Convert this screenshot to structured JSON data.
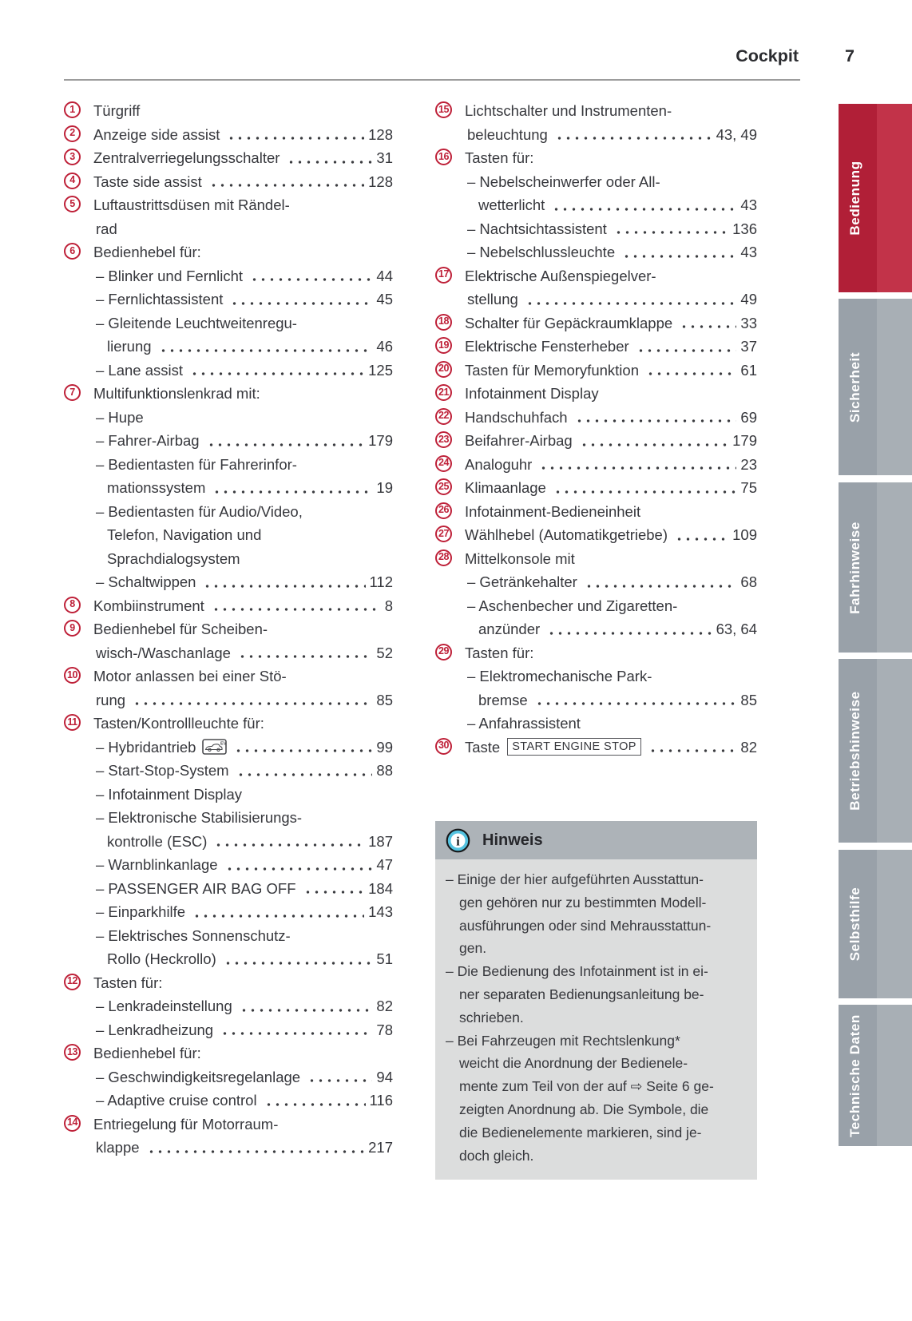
{
  "header": {
    "title": "Cockpit",
    "page_number": "7"
  },
  "toc": {
    "left": [
      {
        "n": "1",
        "lines": [
          "Türgriff"
        ]
      },
      {
        "n": "2",
        "lines": [
          "Anzeige side assist"
        ],
        "page": "128"
      },
      {
        "n": "3",
        "lines": [
          "Zentralverriegelungsschalter"
        ],
        "page": "31"
      },
      {
        "n": "4",
        "lines": [
          "Taste side assist"
        ],
        "page": "128"
      },
      {
        "n": "5",
        "lines": [
          "Luftaustrittsdüsen mit Rändel-",
          "rad"
        ]
      },
      {
        "n": "6",
        "lines": [
          "Bedienhebel für:"
        ]
      },
      {
        "s": true,
        "lines": [
          "– Blinker und Fernlicht"
        ],
        "page": "44"
      },
      {
        "s": true,
        "lines": [
          "– Fernlichtassistent"
        ],
        "page": "45"
      },
      {
        "s": true,
        "lines": [
          "– Gleitende Leuchtweitenregu-",
          "lierung"
        ],
        "page": "46"
      },
      {
        "s": true,
        "lines": [
          "– Lane assist"
        ],
        "page": "125"
      },
      {
        "n": "7",
        "lines": [
          "Multifunktionslenkrad mit:"
        ]
      },
      {
        "s": true,
        "lines": [
          "– Hupe"
        ]
      },
      {
        "s": true,
        "lines": [
          "– Fahrer-Airbag"
        ],
        "page": "179"
      },
      {
        "s": true,
        "lines": [
          "– Bedientasten für Fahrerinfor-",
          "mationssystem"
        ],
        "page": "19"
      },
      {
        "s": true,
        "lines": [
          "– Bedientasten für Audio/Video,",
          "Telefon, Navigation und",
          "Sprachdialogsystem"
        ]
      },
      {
        "s": true,
        "lines": [
          "– Schaltwippen"
        ],
        "page": "112"
      },
      {
        "n": "8",
        "lines": [
          "Kombiinstrument"
        ],
        "page": "8"
      },
      {
        "n": "9",
        "lines": [
          "Bedienhebel für Scheiben-",
          "wisch-/Waschanlage"
        ],
        "page": "52"
      },
      {
        "n": "10",
        "lines": [
          "Motor anlassen bei einer Stö-",
          "rung"
        ],
        "page": "85"
      },
      {
        "n": "11",
        "lines": [
          "Tasten/Kontrollleuchte für:"
        ]
      },
      {
        "s": true,
        "lines": [
          "– Hybridantrieb"
        ],
        "icon": "ev-car-icon",
        "page": "99"
      },
      {
        "s": true,
        "lines": [
          "– Start-Stop-System"
        ],
        "page": "88"
      },
      {
        "s": true,
        "lines": [
          "– Infotainment Display"
        ]
      },
      {
        "s": true,
        "lines": [
          "– Elektronische Stabilisierungs-",
          "kontrolle (ESC)"
        ],
        "page": "187"
      },
      {
        "s": true,
        "lines": [
          "– Warnblinkanlage"
        ],
        "page": "47"
      },
      {
        "s": true,
        "lines": [
          "– PASSENGER AIR BAG OFF"
        ],
        "page": "184"
      },
      {
        "s": true,
        "lines": [
          "– Einparkhilfe"
        ],
        "page": "143"
      },
      {
        "s": true,
        "lines": [
          "– Elektrisches Sonnenschutz-",
          "Rollo (Heckrollo)"
        ],
        "page": "51"
      },
      {
        "n": "12",
        "lines": [
          "Tasten für:"
        ]
      },
      {
        "s": true,
        "lines": [
          "– Lenkradeinstellung"
        ],
        "page": "82"
      },
      {
        "s": true,
        "lines": [
          "– Lenkradheizung"
        ],
        "page": "78"
      },
      {
        "n": "13",
        "lines": [
          "Bedienhebel für:"
        ]
      },
      {
        "s": true,
        "lines": [
          "– Geschwindigkeitsregelanlage"
        ],
        "page": "94"
      },
      {
        "s": true,
        "lines": [
          "– Adaptive cruise control"
        ],
        "page": "116"
      },
      {
        "n": "14",
        "lines": [
          "Entriegelung für Motorraum-",
          "klappe"
        ],
        "page": "217"
      }
    ],
    "right": [
      {
        "n": "15",
        "lines": [
          "Lichtschalter und Instrumenten-",
          "beleuchtung"
        ],
        "page": "43, 49"
      },
      {
        "n": "16",
        "lines": [
          "Tasten für:"
        ]
      },
      {
        "s": true,
        "lines": [
          "– Nebelscheinwerfer oder All-",
          "wetterlicht"
        ],
        "page": "43"
      },
      {
        "s": true,
        "lines": [
          "– Nachtsichtassistent"
        ],
        "page": "136"
      },
      {
        "s": true,
        "lines": [
          "– Nebelschlussleuchte"
        ],
        "page": "43"
      },
      {
        "n": "17",
        "lines": [
          "Elektrische Außenspiegelver-",
          "stellung"
        ],
        "page": "49"
      },
      {
        "n": "18",
        "lines": [
          "Schalter für Gepäckraumklappe"
        ],
        "page": "33"
      },
      {
        "n": "19",
        "lines": [
          "Elektrische Fensterheber"
        ],
        "page": "37"
      },
      {
        "n": "20",
        "lines": [
          "Tasten für Memoryfunktion"
        ],
        "page": "61"
      },
      {
        "n": "21",
        "lines": [
          "Infotainment Display"
        ]
      },
      {
        "n": "22",
        "lines": [
          "Handschuhfach"
        ],
        "page": "69"
      },
      {
        "n": "23",
        "lines": [
          "Beifahrer-Airbag"
        ],
        "page": "179"
      },
      {
        "n": "24",
        "lines": [
          "Analoguhr"
        ],
        "page": "23"
      },
      {
        "n": "25",
        "lines": [
          "Klimaanlage"
        ],
        "page": "75"
      },
      {
        "n": "26",
        "lines": [
          "Infotainment-Bedieneinheit"
        ]
      },
      {
        "n": "27",
        "lines": [
          "Wählhebel (Automatikgetriebe)"
        ],
        "page": "109"
      },
      {
        "n": "28",
        "lines": [
          "Mittelkonsole mit"
        ]
      },
      {
        "s": true,
        "lines": [
          "– Getränkehalter"
        ],
        "page": "68"
      },
      {
        "s": true,
        "lines": [
          "– Aschenbecher und Zigaretten-",
          "anzünder"
        ],
        "page": "63, 64"
      },
      {
        "n": "29",
        "lines": [
          "Tasten für:"
        ]
      },
      {
        "s": true,
        "lines": [
          "– Elektromechanische Park-",
          "bremse"
        ],
        "page": "85"
      },
      {
        "s": true,
        "lines": [
          "– Anfahrassistent"
        ]
      },
      {
        "n": "30",
        "lines": [
          "Taste"
        ],
        "keybox": "START ENGINE STOP",
        "page": "82"
      }
    ]
  },
  "note": {
    "title": "Hinweis",
    "icon": "info-icon",
    "bullets": [
      {
        "lines": [
          "– Einige der hier aufgeführten Ausstattun-",
          "gen gehören nur zu bestimmten Modell-",
          "ausführungen oder sind Mehrausstattun-",
          "gen."
        ]
      },
      {
        "lines": [
          "– Die Bedienung des Infotainment ist in ei-",
          "ner separaten Bedienungsanleitung be-",
          "schrieben."
        ]
      },
      {
        "lines": [
          "– Bei Fahrzeugen mit Rechtslenkung*",
          "weicht die Anordnung der Bedienele-",
          "mente zum Teil von der auf ⇨ Seite 6 ge-",
          "zeigten Anordnung ab. Die Symbole, die",
          "die Bedienelemente markieren, sind je-",
          "doch gleich."
        ]
      }
    ]
  },
  "sidebar": {
    "tabs": [
      {
        "label": "Bedienung",
        "active": true
      },
      {
        "label": "Sicherheit"
      },
      {
        "label": "Fahrhinweise"
      },
      {
        "label": "Betriebshinweise"
      },
      {
        "label": "Selbsthilfe"
      },
      {
        "label": "Technische Daten"
      }
    ]
  },
  "colors": {
    "accent_red": "#be2038",
    "tab_gray": "#99a1a9",
    "note_header_bg": "#adb3b8",
    "note_body_bg": "#dcdddd",
    "text": "#36373c"
  }
}
